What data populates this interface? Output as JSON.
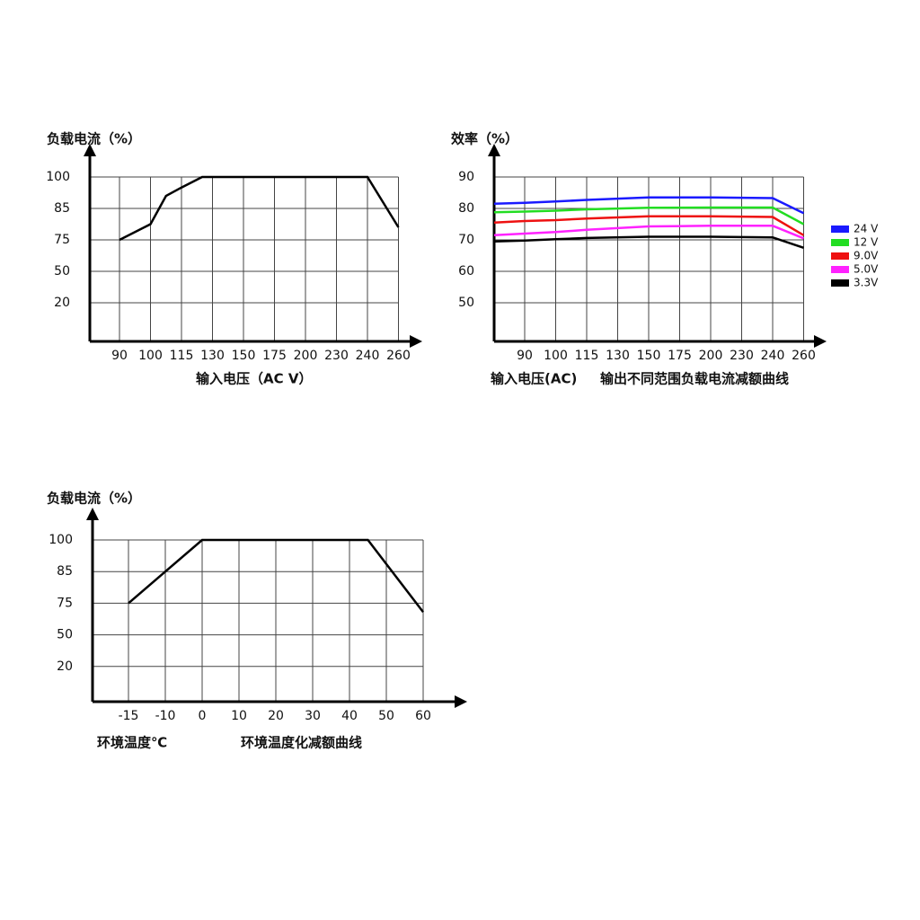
{
  "chart_data": [
    {
      "type": "line",
      "title": "负载电流（%）",
      "x_label": "输入电压（AC V）",
      "x": [
        90,
        100,
        107.5,
        115,
        125,
        240,
        260
      ],
      "values": [
        75,
        80,
        91,
        95,
        100,
        100,
        79
      ],
      "color": "#000000",
      "xlim": [
        80,
        280
      ],
      "xticks": [
        90,
        100,
        115,
        130,
        150,
        175,
        200,
        230,
        240,
        260
      ],
      "ylim": [
        0,
        100
      ],
      "yticks": [
        100,
        85,
        75,
        50,
        20
      ],
      "grid": true
    },
    {
      "type": "line",
      "title": "效率（%）",
      "x_label": "输入电压(AC)",
      "caption": "输出不同范围负载电流减额曲线",
      "x": [
        80,
        90,
        100,
        115,
        150,
        200,
        240,
        260
      ],
      "series": [
        {
          "name": "24 V",
          "color": "#1a1aff",
          "values": [
            81.5,
            81.8,
            82.2,
            82.7,
            83.5,
            83.5,
            83.3,
            78.5
          ]
        },
        {
          "name": "12 V",
          "color": "#22dd22",
          "values": [
            78.8,
            79,
            79.3,
            79.7,
            80.2,
            80.3,
            80.3,
            75
          ]
        },
        {
          "name": "9.0V",
          "color": "#ee1111",
          "values": [
            75.5,
            76,
            76.3,
            76.8,
            77.5,
            77.5,
            77.3,
            71.5
          ]
        },
        {
          "name": "5.0V",
          "color": "#ff22ff",
          "values": [
            71.5,
            72,
            72.5,
            73.2,
            74.3,
            74.5,
            74.5,
            70.5
          ]
        },
        {
          "name": "3.3V",
          "color": "#000000",
          "values": [
            69.5,
            69.8,
            70.2,
            70.6,
            71,
            71,
            70.8,
            67.5
          ]
        }
      ],
      "xlim": [
        80,
        280
      ],
      "xticks": [
        90,
        100,
        115,
        130,
        150,
        175,
        200,
        230,
        240,
        260
      ],
      "ylim": [
        40,
        90
      ],
      "yticks": [
        90,
        80,
        70,
        60,
        50
      ],
      "grid": true,
      "legend": "right"
    },
    {
      "type": "line",
      "title": "负载电流（%）",
      "x_label": "环境温度℃",
      "caption": "环境温度化减额曲线",
      "x": [
        -15,
        0,
        45,
        60
      ],
      "values": [
        75,
        100,
        100,
        68
      ],
      "color": "#000000",
      "xlim": [
        -20,
        70
      ],
      "xticks": [
        -15,
        -10,
        0,
        10,
        20,
        30,
        40,
        50,
        60
      ],
      "ylim": [
        0,
        100
      ],
      "yticks": [
        100,
        85,
        75,
        50,
        20
      ],
      "grid": true
    }
  ]
}
